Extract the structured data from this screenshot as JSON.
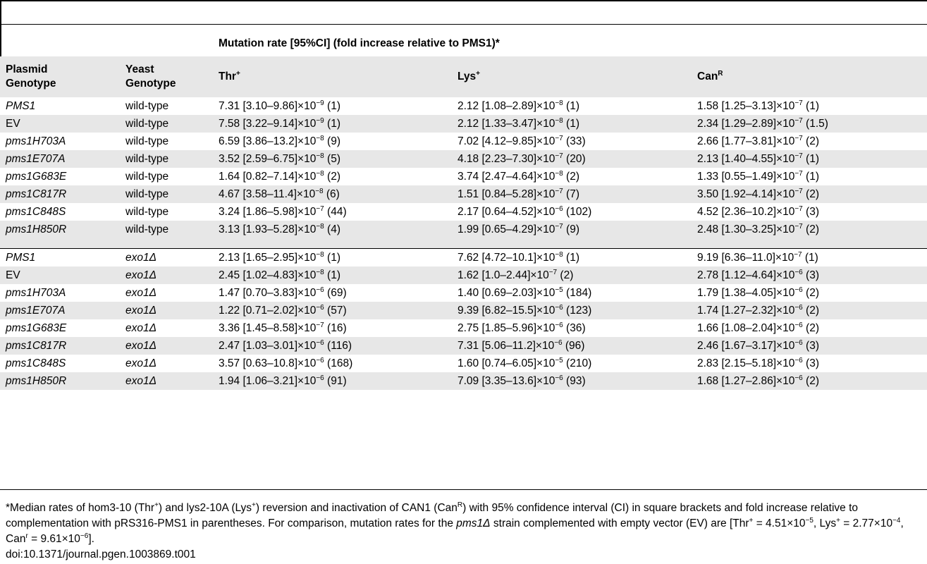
{
  "table": {
    "caption": "Mutation rate [95%CI] (fold increase relative to PMS1)*",
    "headers": {
      "plasmid": [
        "Plasmid",
        "Genotype"
      ],
      "yeast": [
        "Yeast",
        "Genotype"
      ],
      "thr": {
        "base": "Thr",
        "sup": "+"
      },
      "lys": {
        "base": "Lys",
        "sup": "+"
      },
      "can": {
        "base": "Can",
        "sup": "R"
      }
    },
    "rows": [
      {
        "plasmid": "PMS1",
        "italic": true,
        "yeast": "wild-type",
        "yeast_italic": false,
        "thr": {
          "a": "7.31 [3.10–9.86]×10",
          "e": "−9",
          "b": " (1)"
        },
        "lys": {
          "a": "2.12 [1.08–2.89]×10",
          "e": "−8",
          "b": " (1)"
        },
        "can": {
          "a": "1.58 [1.25–3.13]×10",
          "e": "−7",
          "b": " (1)"
        }
      },
      {
        "plasmid": "EV",
        "italic": false,
        "yeast": "wild-type",
        "yeast_italic": false,
        "thr": {
          "a": "7.58 [3.22–9.14]×10",
          "e": "−9",
          "b": " (1)"
        },
        "lys": {
          "a": "2.12 [1.33–3.47]×10",
          "e": "−8",
          "b": " (1)"
        },
        "can": {
          "a": "2.34 [1.29–2.89]×10",
          "e": "−7",
          "b": " (1.5)"
        }
      },
      {
        "plasmid": "pms1H703A",
        "italic": true,
        "yeast": "wild-type",
        "yeast_italic": false,
        "thr": {
          "a": "6.59 [3.86–13.2]×10",
          "e": "−8",
          "b": " (9)"
        },
        "lys": {
          "a": "7.02 [4.12–9.85]×10",
          "e": "−7",
          "b": " (33)"
        },
        "can": {
          "a": "2.66 [1.77–3.81]×10",
          "e": "−7",
          "b": " (2)"
        }
      },
      {
        "plasmid": "pms1E707A",
        "italic": true,
        "yeast": "wild-type",
        "yeast_italic": false,
        "thr": {
          "a": "3.52 [2.59–6.75]×10",
          "e": "−8",
          "b": " (5)"
        },
        "lys": {
          "a": "4.18 [2.23–7.30]×10",
          "e": "−7",
          "b": " (20)"
        },
        "can": {
          "a": "2.13 [1.40–4.55]×10",
          "e": "−7",
          "b": " (1)"
        }
      },
      {
        "plasmid": "pms1G683E",
        "italic": true,
        "yeast": "wild-type",
        "yeast_italic": false,
        "thr": {
          "a": "1.64 [0.82–7.14]×10",
          "e": "−8",
          "b": " (2)"
        },
        "lys": {
          "a": "3.74 [2.47–4.64]×10",
          "e": "−8",
          "b": " (2)"
        },
        "can": {
          "a": "1.33 [0.55–1.49]×10",
          "e": "−7",
          "b": " (1)"
        }
      },
      {
        "plasmid": "pms1C817R",
        "italic": true,
        "yeast": "wild-type",
        "yeast_italic": false,
        "thr": {
          "a": "4.67 [3.58–11.4]×10",
          "e": "−8",
          "b": " (6)"
        },
        "lys": {
          "a": "1.51 [0.84–5.28]×10",
          "e": "−7",
          "b": " (7)"
        },
        "can": {
          "a": "3.50 [1.92–4.14]×10",
          "e": "−7",
          "b": " (2)"
        }
      },
      {
        "plasmid": "pms1C848S",
        "italic": true,
        "yeast": "wild-type",
        "yeast_italic": false,
        "thr": {
          "a": "3.24 [1.86–5.98]×10",
          "e": "−7",
          "b": " (44)"
        },
        "lys": {
          "a": "2.17 [0.64–4.52]×10",
          "e": "−6",
          "b": " (102)"
        },
        "can": {
          "a": "4.52 [2.36–10.2]×10",
          "e": "−7",
          "b": " (3)"
        }
      },
      {
        "plasmid": "pms1H850R",
        "italic": true,
        "yeast": "wild-type",
        "yeast_italic": false,
        "thr": {
          "a": "3.13 [1.93–5.28]×10",
          "e": "−8",
          "b": " (4)"
        },
        "lys": {
          "a": "1.99 [0.65–4.29]×10",
          "e": "−7",
          "b": " (9)"
        },
        "can": {
          "a": "2.48 [1.30–3.25]×10",
          "e": "−7",
          "b": " (2)"
        }
      },
      {
        "spacer": true
      },
      {
        "plasmid": "PMS1",
        "italic": true,
        "yeast": "exo1Δ",
        "yeast_italic": true,
        "thr": {
          "a": "2.13 [1.65–2.95]×10",
          "e": "−8",
          "b": " (1)"
        },
        "lys": {
          "a": "7.62 [4.72–10.1]×10",
          "e": "−8",
          "b": " (1)"
        },
        "can": {
          "a": "9.19 [6.36–11.0]×10",
          "e": "−7",
          "b": " (1)"
        }
      },
      {
        "plasmid": "EV",
        "italic": false,
        "yeast": "exo1Δ",
        "yeast_italic": true,
        "thr": {
          "a": "2.45 [1.02–4.83]×10",
          "e": "−8",
          "b": " (1)"
        },
        "lys": {
          "a": "1.62 [1.0–2.44]×10",
          "e": "−7",
          "b": " (2)"
        },
        "can": {
          "a": "2.78 [1.12–4.64]×10",
          "e": "−6",
          "b": " (3)"
        }
      },
      {
        "plasmid": "pms1H703A",
        "italic": true,
        "yeast": "exo1Δ",
        "yeast_italic": true,
        "thr": {
          "a": "1.47 [0.70–3.83]×10",
          "e": "−6",
          "b": " (69)"
        },
        "lys": {
          "a": "1.40 [0.69–2.03]×10",
          "e": "−5",
          "b": " (184)"
        },
        "can": {
          "a": "1.79 [1.38–4.05]×10",
          "e": "−6",
          "b": " (2)"
        }
      },
      {
        "plasmid": "pms1E707A",
        "italic": true,
        "yeast": "exo1Δ",
        "yeast_italic": true,
        "thr": {
          "a": "1.22 [0.71–2.02]×10",
          "e": "−6",
          "b": " (57)"
        },
        "lys": {
          "a": "9.39 [6.82–15.5]×10",
          "e": "−6",
          "b": " (123)"
        },
        "can": {
          "a": "1.74 [1.27–2.32]×10",
          "e": "−6",
          "b": " (2)"
        }
      },
      {
        "plasmid": "pms1G683E",
        "italic": true,
        "yeast": "exo1Δ",
        "yeast_italic": true,
        "thr": {
          "a": "3.36 [1.45–8.58]×10",
          "e": "−7",
          "b": " (16)"
        },
        "lys": {
          "a": "2.75 [1.85–5.96]×10",
          "e": "−6",
          "b": " (36)"
        },
        "can": {
          "a": "1.66 [1.08–2.04]×10",
          "e": "−6",
          "b": " (2)"
        }
      },
      {
        "plasmid": "pms1C817R",
        "italic": true,
        "yeast": "exo1Δ",
        "yeast_italic": true,
        "thr": {
          "a": "2.47 [1.03–3.01]×10",
          "e": "−6",
          "b": " (116)"
        },
        "lys": {
          "a": "7.31 [5.06–11.2]×10",
          "e": "−6",
          "b": " (96)"
        },
        "can": {
          "a": "2.46 [1.67–3.17]×10",
          "e": "−6",
          "b": " (3)"
        }
      },
      {
        "plasmid": "pms1C848S",
        "italic": true,
        "yeast": "exo1Δ",
        "yeast_italic": true,
        "thr": {
          "a": "3.57 [0.63–10.8]×10",
          "e": "−6",
          "b": " (168)"
        },
        "lys": {
          "a": "1.60 [0.74–6.05]×10",
          "e": "−5",
          "b": " (210)"
        },
        "can": {
          "a": "2.83 [2.15–5.18]×10",
          "e": "−6",
          "b": " (3)"
        }
      },
      {
        "plasmid": "pms1H850R",
        "italic": true,
        "yeast": "exo1Δ",
        "yeast_italic": true,
        "thr": {
          "a": "1.94 [1.06–3.21]×10",
          "e": "−6",
          "b": " (91)"
        },
        "lys": {
          "a": "7.09 [3.35–13.6]×10",
          "e": "−6",
          "b": " (93)"
        },
        "can": {
          "a": "1.68 [1.27–2.86]×10",
          "e": "−6",
          "b": " (2)"
        }
      }
    ]
  },
  "footnote": {
    "segments": [
      {
        "t": "*Median rates of hom3-10 (Thr"
      },
      {
        "t": "+",
        "sup": true
      },
      {
        "t": ") and lys2-10A (Lys"
      },
      {
        "t": "+",
        "sup": true
      },
      {
        "t": ") reversion and inactivation of CAN1 (Can"
      },
      {
        "t": "R",
        "sup": true
      },
      {
        "t": ") with 95% confidence interval (CI) in square brackets and fold increase relative to complementation with pRS316-PMS1 in parentheses. For comparison, mutation rates for the "
      },
      {
        "t": "pms1Δ",
        "italic": true
      },
      {
        "t": " strain complemented with empty vector (EV) are [Thr"
      },
      {
        "t": "+",
        "sup": true
      },
      {
        "t": " = 4.51×10"
      },
      {
        "t": "−5",
        "sup": true
      },
      {
        "t": ", Lys"
      },
      {
        "t": "+",
        "sup": true
      },
      {
        "t": " = 2.77×10"
      },
      {
        "t": "−4",
        "sup": true
      },
      {
        "t": ", Can"
      },
      {
        "t": "r",
        "sup": true
      },
      {
        "t": " = 9.61×10"
      },
      {
        "t": "−6",
        "sup": true
      },
      {
        "t": "]."
      }
    ],
    "doi": "doi:10.1371/journal.pgen.1003869.t001"
  }
}
